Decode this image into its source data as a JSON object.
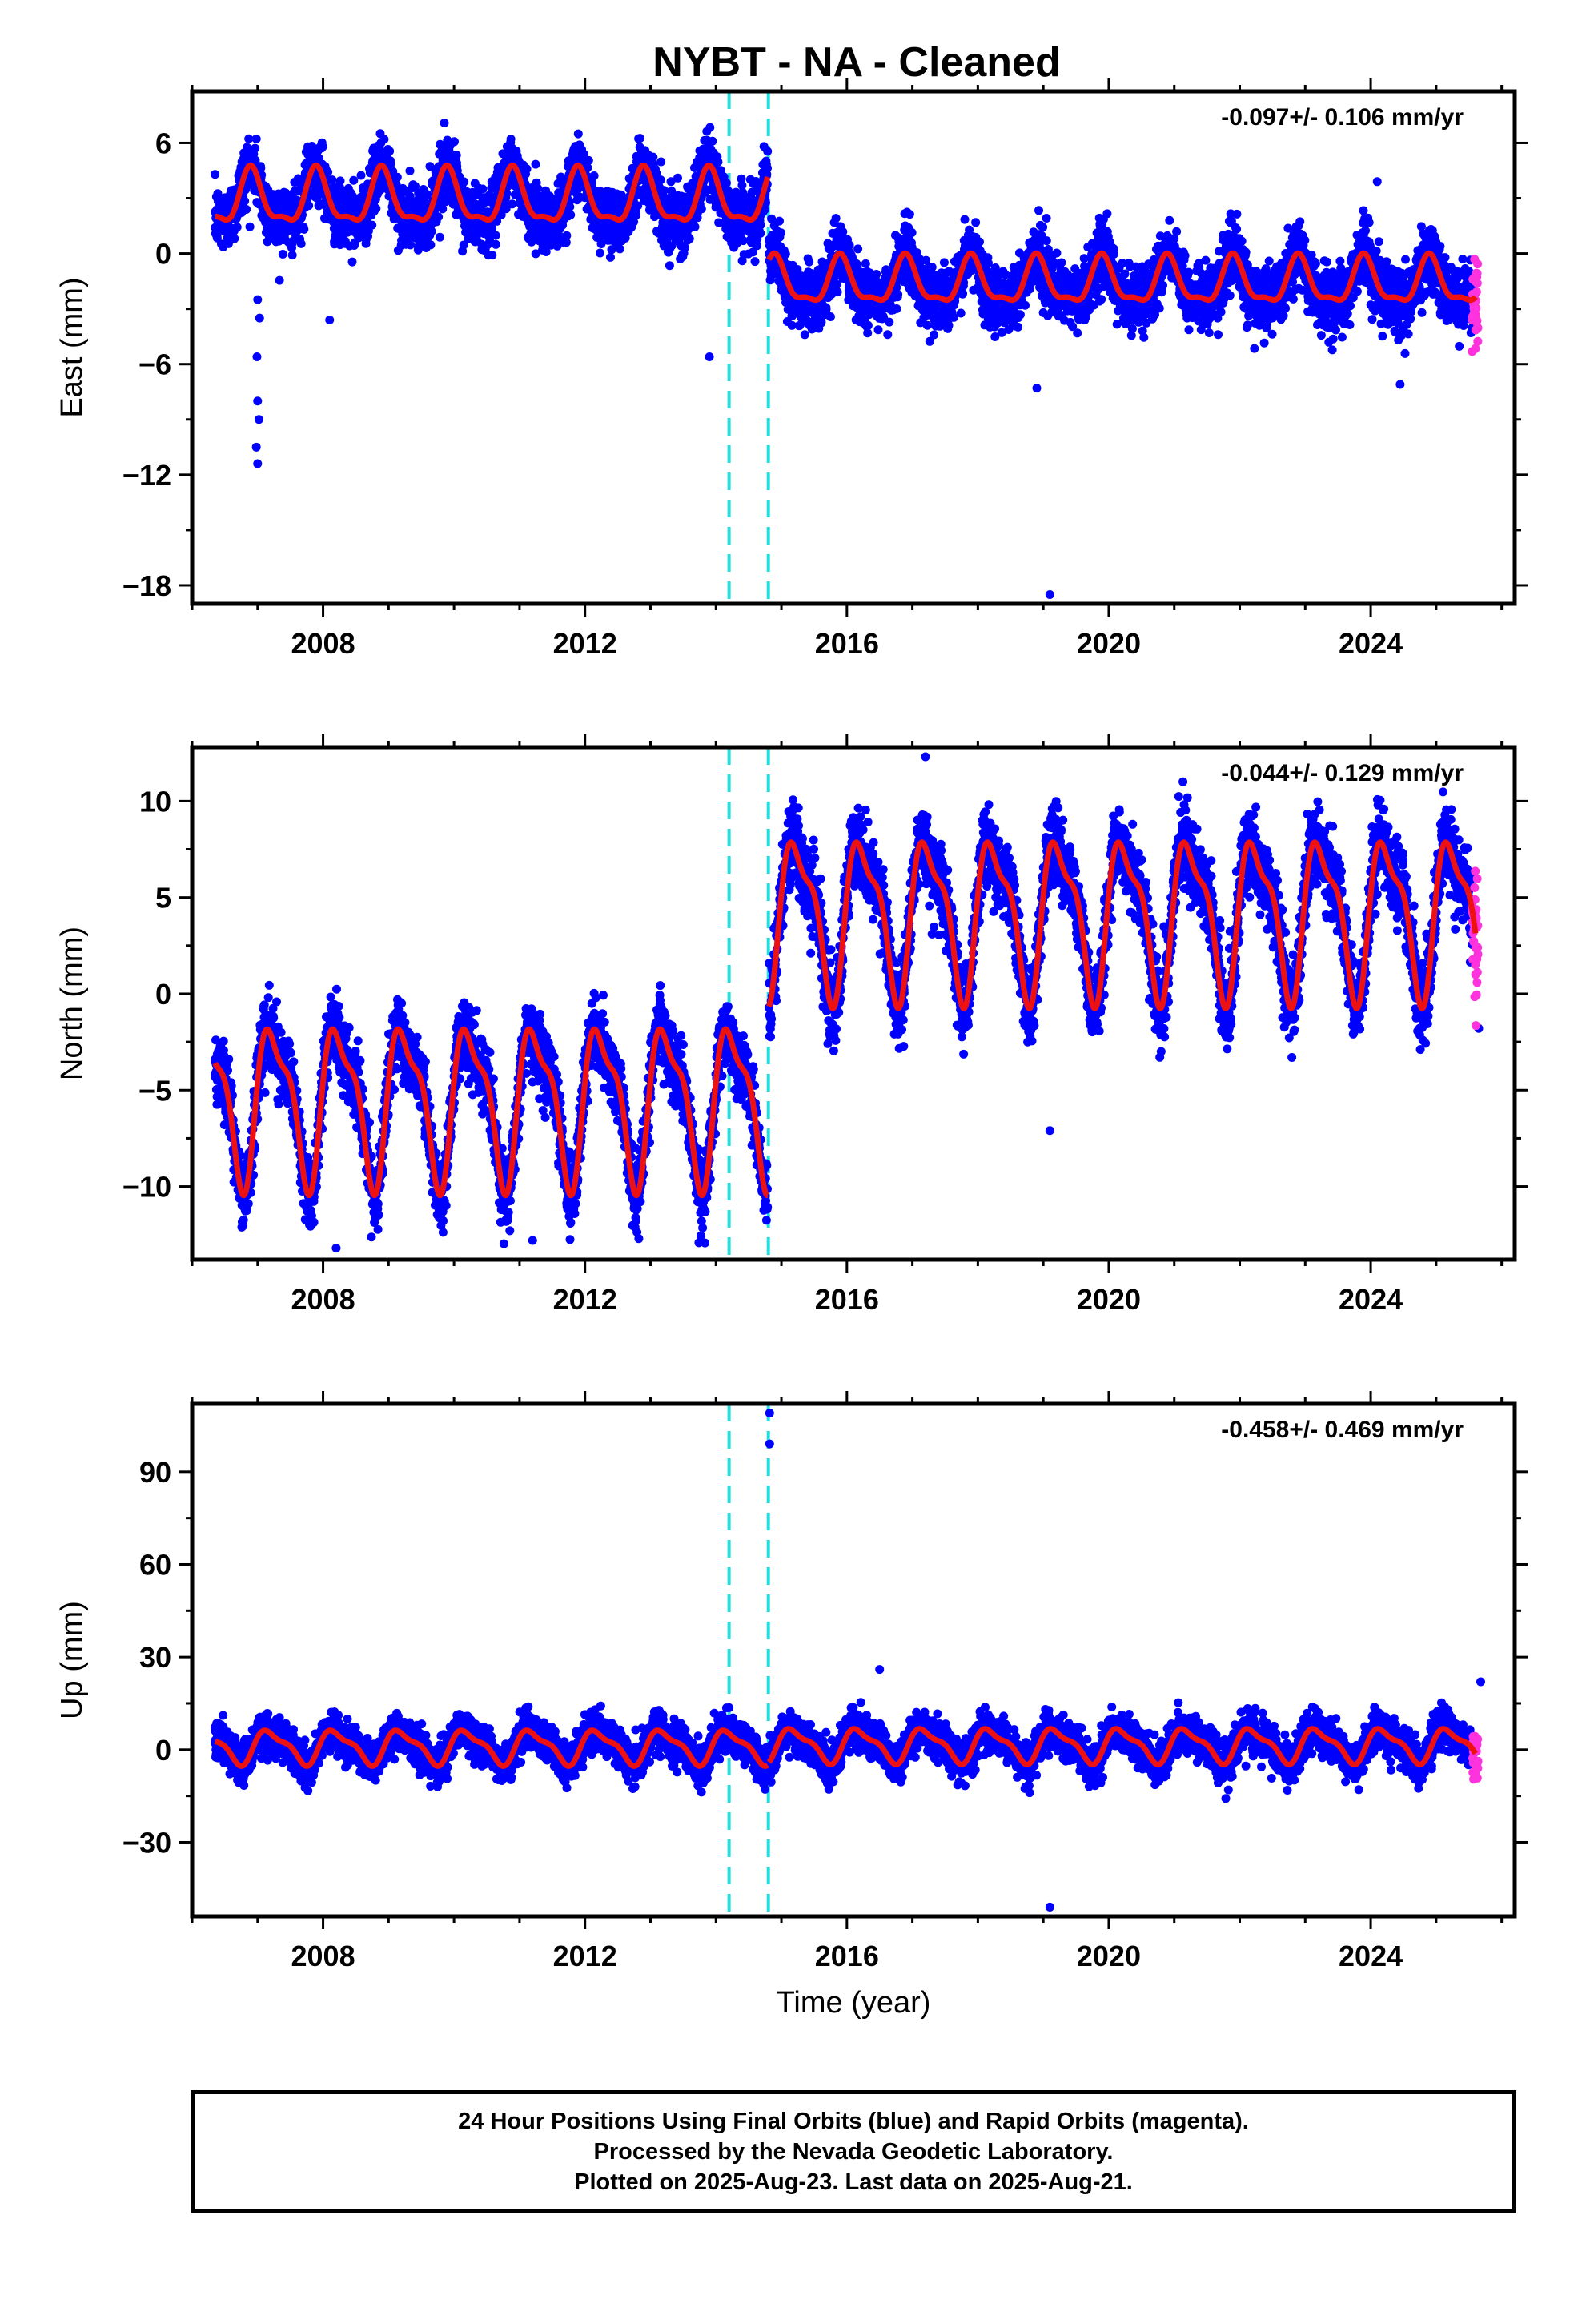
{
  "title": "NYBT  - NA - Cleaned",
  "colors": {
    "final": "#0000ff",
    "rapid": "#ff33dd",
    "model": "#ee1111",
    "break": "#22dddd",
    "frame": "#000000"
  },
  "footer": {
    "line1": "24 Hour Positions Using Final Orbits (blue) and Rapid Orbits (magenta).",
    "line2": "Processed by the Nevada Geodetic Laboratory.",
    "line3": "Plotted on 2025-Aug-23. Last data on 2025-Aug-21."
  },
  "chart_data": [
    {
      "type": "scatter",
      "component": "east",
      "ylabel": "East (mm)",
      "xlabel": "",
      "rate_label": "-0.097+/- 0.106 mm/yr",
      "xlim": [
        2006.0,
        2026.2
      ],
      "ylim": [
        -19.0,
        8.8
      ],
      "xticks": [
        2008,
        2012,
        2016,
        2020,
        2024
      ],
      "yticks": [
        6,
        0,
        -6,
        -12,
        -18
      ],
      "yticklabels": [
        "6",
        "0",
        "−6",
        "−12",
        "−18"
      ],
      "breaks": [
        2014.2,
        2014.8
      ],
      "data_span": [
        2006.35,
        2025.6
      ],
      "rapid_span": [
        2025.55,
        2025.64
      ],
      "segments": [
        {
          "x": [
            2006.35,
            2014.79
          ],
          "offset": 2.9,
          "amp": 1.4,
          "spread": 1.5
        },
        {
          "x": [
            2014.81,
            2025.6
          ],
          "offset": -1.6,
          "amp": 1.2,
          "spread": 1.5
        }
      ],
      "outliers": [
        {
          "x": 2007.0,
          "y": -11.4
        },
        {
          "x": 2006.98,
          "y": -10.5
        },
        {
          "x": 2007.02,
          "y": -9.0
        },
        {
          "x": 2007.0,
          "y": -8.0
        },
        {
          "x": 2006.99,
          "y": -5.6
        },
        {
          "x": 2007.03,
          "y": -3.5
        },
        {
          "x": 2007.0,
          "y": -2.5
        },
        {
          "x": 2008.1,
          "y": -3.6
        },
        {
          "x": 2013.9,
          "y": -5.6
        },
        {
          "x": 2018.9,
          "y": -7.3
        },
        {
          "x": 2019.1,
          "y": -18.5
        },
        {
          "x": 2024.1,
          "y": 3.9
        },
        {
          "x": 2024.45,
          "y": -7.1
        }
      ]
    },
    {
      "type": "scatter",
      "component": "north",
      "ylabel": "North (mm)",
      "xlabel": "",
      "rate_label": "-0.044+/- 0.129 mm/yr",
      "xlim": [
        2006.0,
        2026.2
      ],
      "ylim": [
        -13.8,
        12.8
      ],
      "xticks": [
        2008,
        2012,
        2016,
        2020,
        2024
      ],
      "yticks": [
        10,
        5,
        0,
        -5,
        -10
      ],
      "yticklabels": [
        "10",
        "5",
        "0",
        "−5",
        "−10"
      ],
      "breaks": [
        2014.2,
        2014.8
      ],
      "data_span": [
        2006.35,
        2025.6
      ],
      "rapid_span": [
        2025.55,
        2025.64
      ],
      "segments": [
        {
          "x": [
            2006.35,
            2014.79
          ],
          "offset": -5.5,
          "amp": 3.8,
          "spread": 1.6
        },
        {
          "x": [
            2014.81,
            2025.6
          ],
          "offset": 4.2,
          "amp": 3.8,
          "spread": 1.8
        }
      ],
      "outliers": [
        {
          "x": 2008.2,
          "y": -13.2
        },
        {
          "x": 2011.2,
          "y": -12.8
        },
        {
          "x": 2019.1,
          "y": -7.1
        },
        {
          "x": 2020.8,
          "y": -3.0
        },
        {
          "x": 2017.2,
          "y": 12.3
        },
        {
          "x": 2025.65,
          "y": -1.8
        }
      ]
    },
    {
      "type": "scatter",
      "component": "up",
      "ylabel": "Up (mm)",
      "xlabel": "Time (year)",
      "rate_label": "-0.458+/- 0.469 mm/yr",
      "xlim": [
        2006.0,
        2026.2
      ],
      "ylim": [
        -54.0,
        112.0
      ],
      "xticks": [
        2008,
        2012,
        2016,
        2020,
        2024
      ],
      "yticks": [
        90,
        60,
        30,
        0,
        -30
      ],
      "yticklabels": [
        "90",
        "60",
        "30",
        "0",
        "−30"
      ],
      "breaks": [
        2014.2,
        2014.8
      ],
      "data_span": [
        2006.35,
        2025.6
      ],
      "rapid_span": [
        2025.55,
        2025.64
      ],
      "segments": [
        {
          "x": [
            2006.35,
            2014.79
          ],
          "offset": 1.0,
          "amp": 5.0,
          "spread": 5.5
        },
        {
          "x": [
            2014.81,
            2025.6
          ],
          "offset": 1.5,
          "amp": 5.0,
          "spread": 5.5
        }
      ],
      "outliers": [
        {
          "x": 2014.82,
          "y": 109.0
        },
        {
          "x": 2014.82,
          "y": 99.0
        },
        {
          "x": 2019.1,
          "y": -51.0
        },
        {
          "x": 2025.68,
          "y": 22.0
        },
        {
          "x": 2016.5,
          "y": 26.0
        }
      ]
    }
  ]
}
